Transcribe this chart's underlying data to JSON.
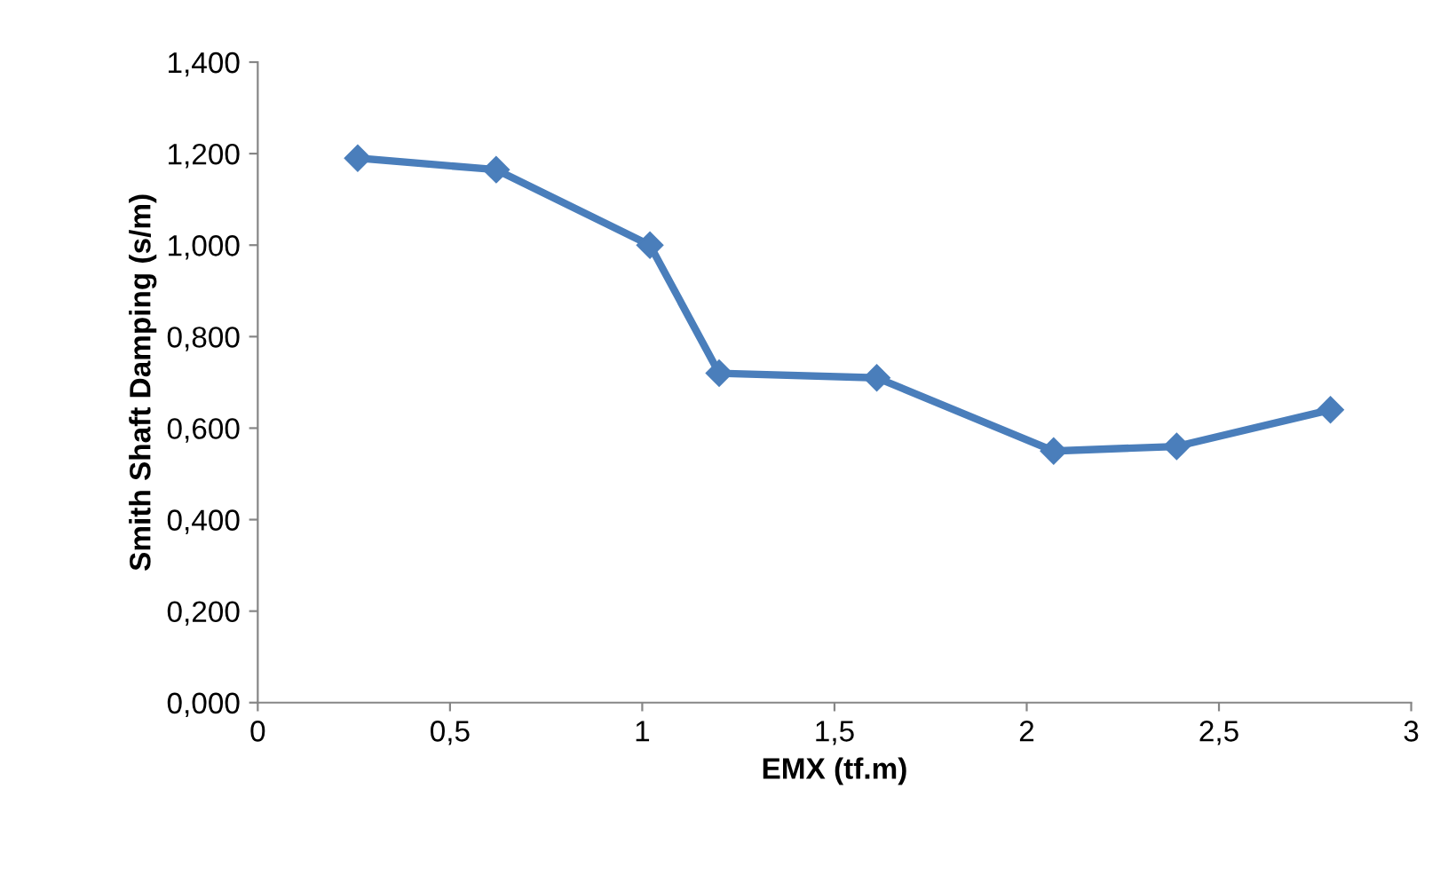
{
  "chart_data": {
    "type": "line",
    "xlabel": "EMX (tf.m)",
    "ylabel": "Smith Shaft Damping (s/m)",
    "x": [
      0.26,
      0.62,
      1.02,
      1.2,
      1.61,
      2.07,
      2.39,
      2.79
    ],
    "series": [
      {
        "color": "#4a7ebb",
        "values": [
          1.19,
          1.165,
          1.0,
          0.72,
          0.71,
          0.55,
          0.56,
          0.64
        ]
      }
    ],
    "xlim": [
      0,
      3
    ],
    "xticks": [
      0,
      {
        "value": 0.5,
        "label": "0,5"
      },
      1,
      {
        "value": 1.5,
        "label": "1,5"
      },
      2,
      {
        "value": 2.5,
        "label": "2,5"
      },
      3
    ],
    "ylim": [
      0,
      1.4
    ],
    "yticks": [
      {
        "value": 0,
        "label": "0,000"
      },
      {
        "value": 0.2,
        "label": "0,200"
      },
      {
        "value": 0.4,
        "label": "0,400"
      },
      {
        "value": 0.6,
        "label": "0,600"
      },
      {
        "value": 0.8,
        "label": "0,800"
      },
      {
        "value": 1.0,
        "label": "1,000"
      },
      {
        "value": 1.2,
        "label": "1,200"
      },
      {
        "value": 1.4,
        "label": "1,400"
      }
    ],
    "grid": false,
    "marker": "diamond",
    "line_style": "solid"
  }
}
